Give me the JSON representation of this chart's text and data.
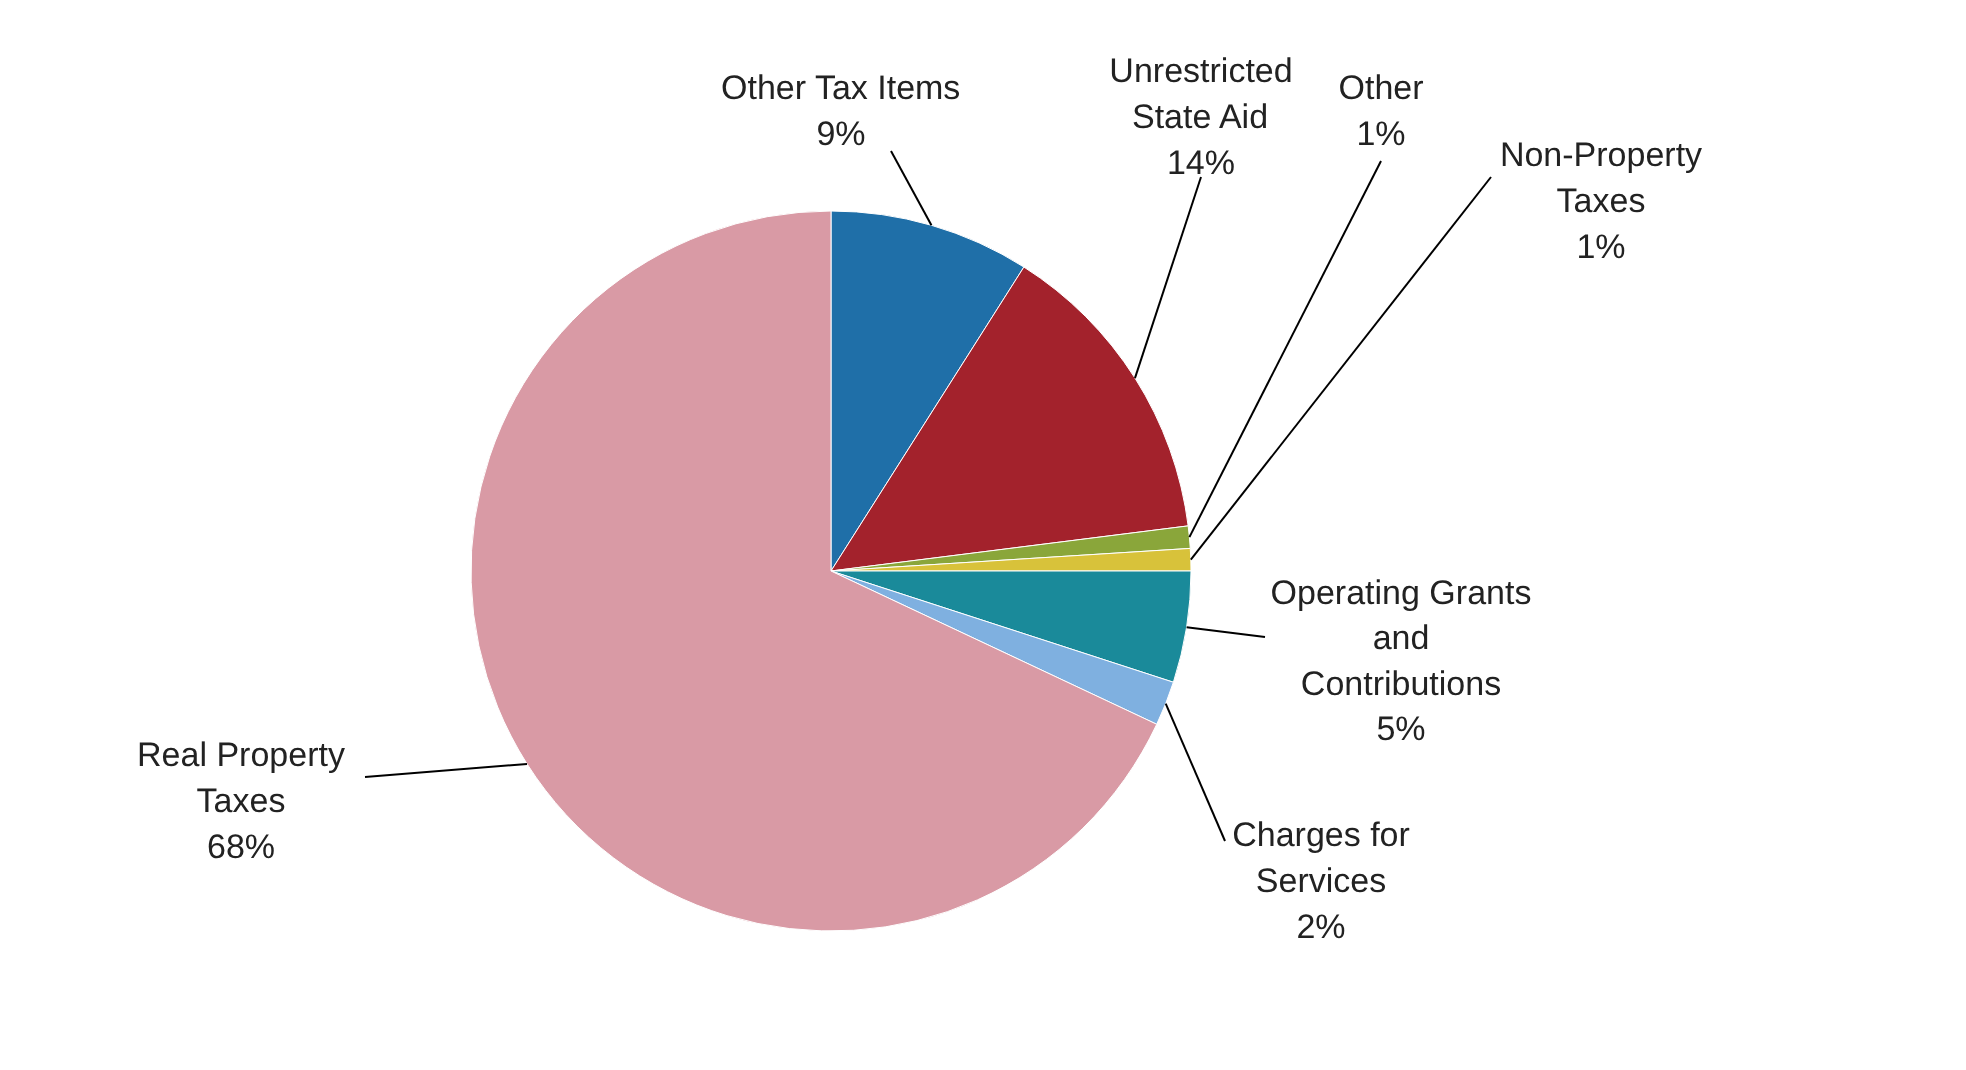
{
  "chart_data": {
    "type": "pie",
    "categories": [
      "Other Tax Items",
      "Unrestricted\nState Aid",
      "Other",
      "Non-Property\nTaxes",
      "Operating Grants\nand\nContributions",
      "Charges for\nServices",
      "Real Property\nTaxes"
    ],
    "values": [
      9,
      14,
      1,
      1,
      5,
      2,
      68
    ],
    "value_labels": [
      "9%",
      "14%",
      "1%",
      "1%",
      "5%",
      "2%",
      "68%"
    ],
    "colors": [
      "#1f6fa8",
      "#a3222c",
      "#8aa63a",
      "#d8c23a",
      "#1a8a9a",
      "#7fb0e0",
      "#d99aa5"
    ]
  }
}
